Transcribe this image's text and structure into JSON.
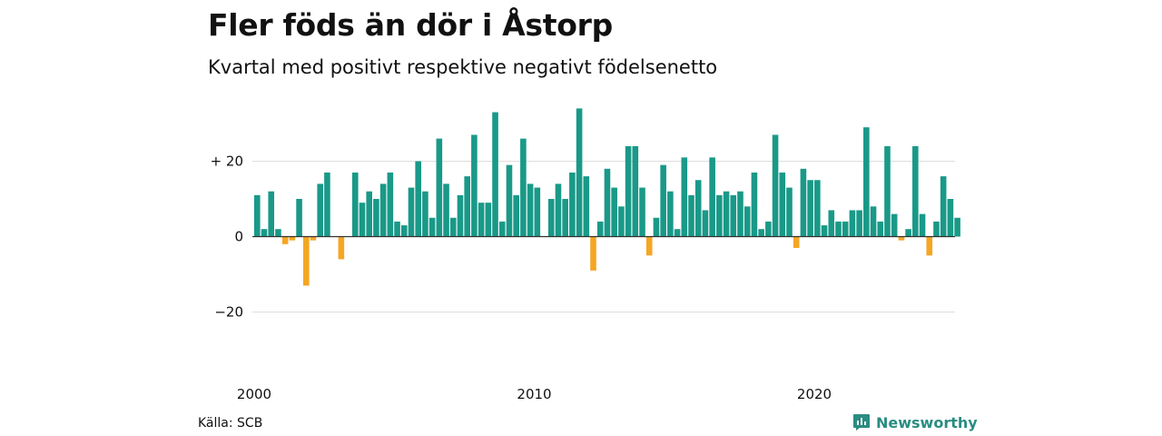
{
  "title": "Fler föds än dör i Åstorp",
  "subtitle": "Kvartal med positivt respektive negativt födelsenetto",
  "source": "Källa: SCB",
  "brand": "Newsworthy",
  "colors": {
    "positive": "#1a9988",
    "negative": "#f5a623",
    "grid": "#dddddd",
    "brand": "#2a8c82"
  },
  "chart_data": {
    "type": "bar",
    "title": "Fler föds än dör i Åstorp",
    "subtitle": "Kvartal med positivt respektive negativt födelsenetto",
    "x_start": 2000,
    "x_step": 0.25,
    "x_ticks": [
      2000,
      2010,
      2020
    ],
    "y_ticks": [
      20,
      0,
      -20
    ],
    "y_tick_labels": [
      "+ 20",
      "0",
      "−20"
    ],
    "ylim": [
      -33,
      33
    ],
    "grid": true,
    "values": [
      11,
      2,
      12,
      2,
      -2,
      -1,
      10,
      -13,
      -1,
      14,
      17,
      0,
      -6,
      0,
      17,
      9,
      12,
      10,
      14,
      17,
      4,
      3,
      13,
      20,
      12,
      5,
      26,
      14,
      5,
      11,
      16,
      27,
      9,
      9,
      33,
      4,
      19,
      11,
      26,
      14,
      13,
      0,
      10,
      14,
      10,
      17,
      34,
      16,
      -9,
      4,
      18,
      13,
      8,
      24,
      24,
      13,
      -5,
      5,
      19,
      12,
      2,
      21,
      11,
      15,
      7,
      21,
      11,
      12,
      11,
      12,
      8,
      17,
      2,
      4,
      27,
      17,
      13,
      -3,
      18,
      15,
      15,
      3,
      7,
      4,
      4,
      7,
      7,
      29,
      8,
      4,
      24,
      6,
      -1,
      2,
      24,
      6,
      -5,
      4,
      16,
      10,
      5
    ]
  }
}
